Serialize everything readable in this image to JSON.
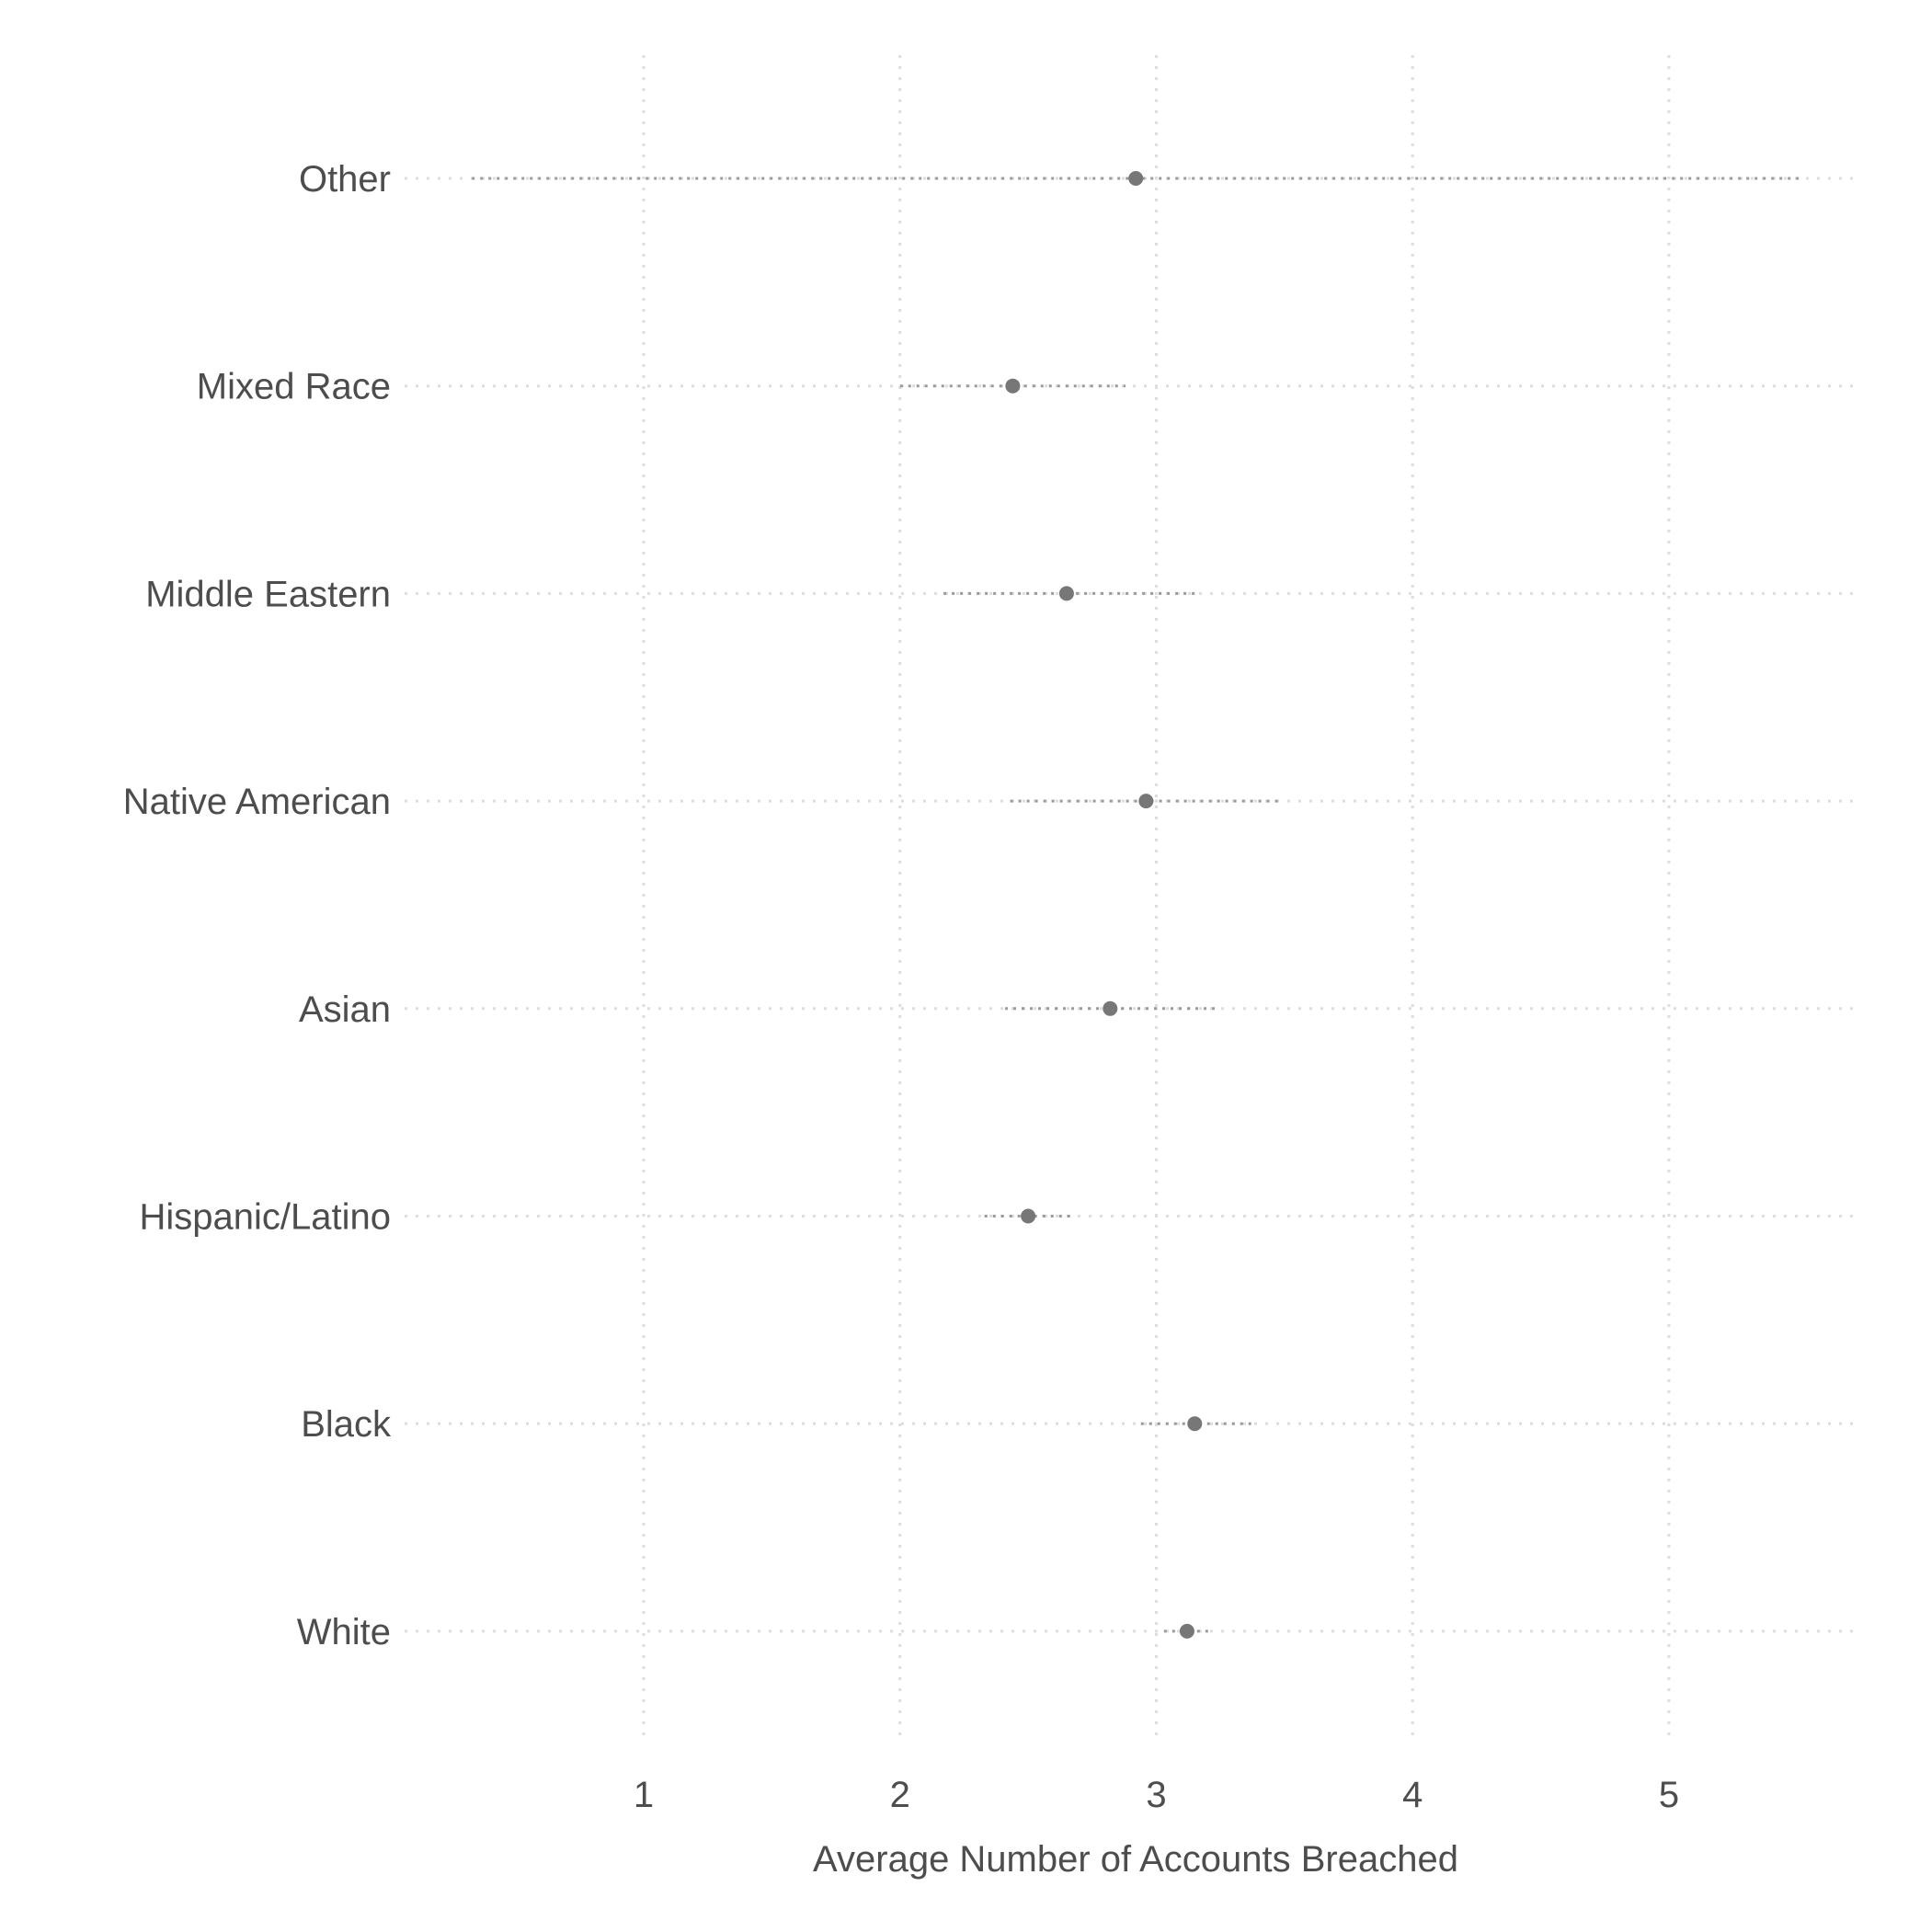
{
  "chart_data": {
    "type": "scatter",
    "subtype": "dot plot with interval lines",
    "title": "",
    "xlabel": "Average Number of Accounts Breached",
    "ylabel": "",
    "xlim": [
      0,
      5.7
    ],
    "x_ticks": [
      "1",
      "2",
      "3",
      "4",
      "5"
    ],
    "grid": true,
    "legend": "none",
    "colors": {
      "point": "#777777",
      "interval": "#9a9a9a",
      "grid": "#dddddd",
      "text": "#4d4d4d"
    },
    "points": [
      {
        "category": "Other",
        "value": 2.92,
        "low": 0.33,
        "high": 5.52
      },
      {
        "category": "Mixed Race",
        "value": 2.44,
        "low": 2.0,
        "high": 2.88
      },
      {
        "category": "Middle Eastern",
        "value": 2.65,
        "low": 2.17,
        "high": 3.15
      },
      {
        "category": "Native American",
        "value": 2.96,
        "low": 2.43,
        "high": 3.48
      },
      {
        "category": "Asian",
        "value": 2.82,
        "low": 2.41,
        "high": 3.23
      },
      {
        "category": "Hispanic/Latino",
        "value": 2.5,
        "low": 2.33,
        "high": 2.67
      },
      {
        "category": "Black",
        "value": 3.15,
        "low": 2.94,
        "high": 3.37
      },
      {
        "category": "White",
        "value": 3.12,
        "low": 3.03,
        "high": 3.22
      }
    ]
  }
}
